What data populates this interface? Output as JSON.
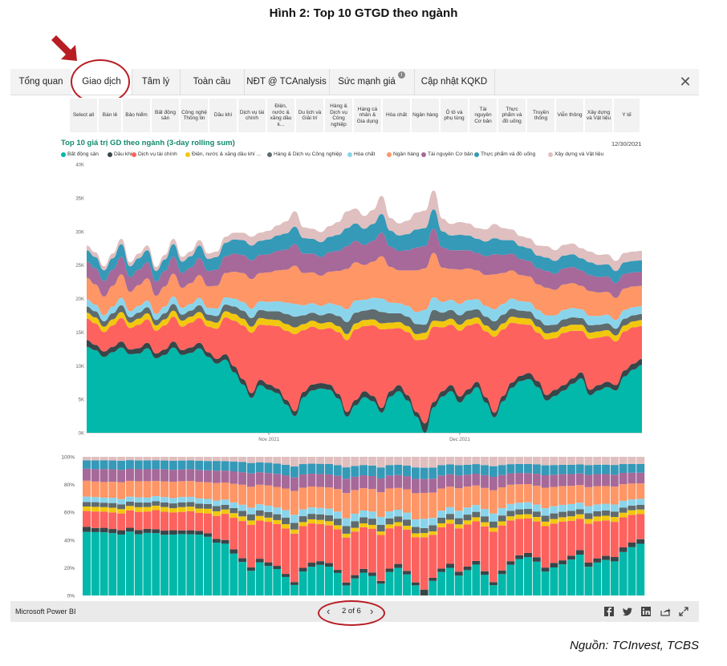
{
  "figure_title": "Hình 2: Top 10 GTGD theo ngành",
  "source": "Nguồn: TCInvest, TCBS",
  "tabs": [
    {
      "label": "Tổng quan"
    },
    {
      "label": "Giao dịch",
      "active": true
    },
    {
      "label": "Tâm lý"
    },
    {
      "label": "Toàn cầu"
    },
    {
      "label": "NĐT @ TCAnalysis"
    },
    {
      "label": "Sức mạnh giá",
      "info": true
    },
    {
      "label": "Cập nhật KQKD"
    }
  ],
  "close_symbol": "✕",
  "slicer": [
    "Select all",
    "Bán lẻ",
    "Bảo hiểm",
    "Bất động sản",
    "Công nghệ Thông tin",
    "Dầu khí",
    "Dịch vụ tài chính",
    "Điện, nước & xăng dầu k...",
    "Du lịch và Giải trí",
    "Hàng & Dịch vụ Công nghiệp",
    "Hàng cá nhân & Gia dụng",
    "Hóa chất",
    "Ngân hàng",
    "Ô tô và phụ tùng",
    "Tài nguyên Cơ bản",
    "Thực phẩm và đồ uống",
    "Truyền thông",
    "Viễn thông",
    "Xây dựng và Vật liệu",
    "Y tế"
  ],
  "chart_header": {
    "title": "Top 10 giá trị GD theo ngành (3-day rolling sum)",
    "date": "12/30/2021"
  },
  "footer": {
    "brand": "Microsoft Power BI",
    "page": "2 of 6",
    "prev": "‹",
    "next": "›"
  },
  "footer_icons": [
    "facebook-icon",
    "twitter-icon",
    "linkedin-icon",
    "share-icon",
    "expand-icon"
  ],
  "colors": {
    "accent_red": "#b81d24",
    "title_teal": "#118a6e"
  },
  "chart_data": [
    {
      "type": "area",
      "title": "Top 10 giá trị GD theo ngành (3-day rolling sum)",
      "x_ticks": [
        "Nov 2021",
        "Dec 2021"
      ],
      "y_ticks": [
        "0K",
        "5K",
        "10K",
        "15K",
        "20K",
        "25K",
        "30K",
        "35K",
        "40K"
      ],
      "ylim": [
        0,
        40000
      ],
      "legend_position": "top",
      "x": [
        "10/01",
        "10/04",
        "10/05",
        "10/06",
        "10/07",
        "10/08",
        "10/11",
        "10/12",
        "10/13",
        "10/14",
        "10/15",
        "10/18",
        "10/19",
        "10/20",
        "10/21",
        "10/22",
        "10/25",
        "10/26",
        "10/27",
        "10/28",
        "10/29",
        "11/01",
        "11/02",
        "11/03",
        "11/04",
        "11/05",
        "11/08",
        "11/09",
        "11/10",
        "11/11",
        "11/12",
        "11/15",
        "11/16",
        "11/17",
        "11/18",
        "11/19",
        "11/22",
        "11/23",
        "11/24",
        "11/25",
        "11/26",
        "11/29",
        "11/30",
        "12/01",
        "12/02",
        "12/03",
        "12/06",
        "12/07",
        "12/08",
        "12/09",
        "12/10",
        "12/13",
        "12/14",
        "12/15",
        "12/16",
        "12/17",
        "12/20",
        "12/21",
        "12/22",
        "12/23",
        "12/24",
        "12/27",
        "12/28",
        "12/29",
        "12/30"
      ],
      "series": [
        {
          "name": "Bất động sản",
          "color": "#01B8AA",
          "values": [
            12800,
            12300,
            11300,
            12000,
            12700,
            11700,
            11800,
            12600,
            11100,
            11600,
            12700,
            11600,
            11900,
            12600,
            11300,
            10300,
            10900,
            9000,
            7200,
            5200,
            7100,
            6400,
            5900,
            4200,
            2500,
            5300,
            6300,
            6600,
            6400,
            5100,
            2400,
            4100,
            5300,
            4700,
            3000,
            5400,
            6200,
            4800,
            2400,
            0,
            3800,
            5400,
            6200,
            4500,
            5700,
            6800,
            4500,
            2300,
            4700,
            6700,
            7700,
            8000,
            6800,
            4800,
            5500,
            6300,
            7300,
            8100,
            5600,
            6300,
            6800,
            6300,
            8400,
            9400,
            10100
          ]
        },
        {
          "name": "Dầu khí",
          "color": "#374649",
          "values": [
            1000,
            800,
            800,
            800,
            900,
            700,
            800,
            800,
            700,
            800,
            900,
            700,
            800,
            800,
            700,
            700,
            800,
            900,
            800,
            700,
            800,
            800,
            700,
            700,
            700,
            800,
            900,
            800,
            800,
            700,
            700,
            800,
            900,
            800,
            700,
            800,
            900,
            800,
            700,
            1400,
            800,
            800,
            900,
            900,
            800,
            800,
            800,
            700,
            800,
            800,
            800,
            900,
            900,
            800,
            900,
            800,
            800,
            900,
            800,
            800,
            800,
            800,
            900,
            900,
            900
          ]
        },
        {
          "name": "Dịch vụ tài chính",
          "color": "#FD625E",
          "values": [
            3200,
            3200,
            2900,
            3200,
            3500,
            3200,
            3500,
            3500,
            3400,
            3600,
            3700,
            3500,
            3700,
            3700,
            3800,
            4500,
            5500,
            6800,
            8000,
            9000,
            8200,
            8800,
            9300,
            10300,
            11500,
            9200,
            8600,
            8000,
            8400,
            9200,
            10700,
            10500,
            9700,
            10500,
            11700,
            9300,
            8500,
            9400,
            10700,
            12500,
            11200,
            9500,
            9000,
            9800,
            9500,
            8700,
            9800,
            11300,
            9900,
            8900,
            7700,
            7200,
            7200,
            8300,
            7700,
            7800,
            7100,
            6200,
            7600,
            7100,
            6800,
            6500,
            5800,
            5400,
            4900
          ]
        },
        {
          "name": "Điện, nước & xăng dầu khí ...",
          "color": "#F2C80F",
          "values": [
            900,
            900,
            800,
            900,
            900,
            800,
            900,
            900,
            800,
            900,
            900,
            900,
            900,
            900,
            900,
            900,
            900,
            1000,
            1000,
            900,
            1000,
            900,
            900,
            1000,
            1000,
            900,
            900,
            900,
            900,
            900,
            900,
            900,
            900,
            900,
            900,
            900,
            900,
            900,
            900,
            1000,
            900,
            900,
            900,
            900,
            900,
            900,
            900,
            900,
            900,
            900,
            900,
            900,
            900,
            900,
            900,
            900,
            900,
            900,
            900,
            900,
            900,
            900,
            900,
            900,
            900
          ]
        },
        {
          "name": "Hàng & Dịch vụ Công nghiệp",
          "color": "#5F6B6D",
          "values": [
            900,
            900,
            800,
            900,
            1000,
            800,
            900,
            900,
            800,
            900,
            1000,
            900,
            900,
            1000,
            900,
            1000,
            1000,
            1100,
            1200,
            1300,
            1200,
            1200,
            1300,
            1500,
            1600,
            1300,
            1200,
            1200,
            1300,
            1500,
            1800,
            1600,
            1400,
            1500,
            1700,
            1400,
            1300,
            1400,
            1500,
            1200,
            1600,
            1300,
            1300,
            1400,
            1300,
            1200,
            1300,
            1400,
            1300,
            1200,
            1100,
            1100,
            1100,
            1200,
            1100,
            1100,
            1100,
            1000,
            1100,
            1000,
            1000,
            1000,
            1000,
            900,
            900
          ]
        },
        {
          "name": "Hóa chất",
          "color": "#8AD4EB",
          "values": [
            1100,
            1000,
            900,
            1000,
            1100,
            900,
            1000,
            1000,
            900,
            1000,
            1100,
            1000,
            1000,
            1100,
            1000,
            1100,
            1100,
            1200,
            1300,
            1400,
            1300,
            1400,
            1500,
            1700,
            1900,
            1500,
            1400,
            1400,
            1500,
            1600,
            1900,
            1800,
            1600,
            1700,
            2000,
            1600,
            1500,
            1600,
            1800,
            2200,
            1900,
            1600,
            1500,
            1700,
            1600,
            1500,
            1600,
            1800,
            1600,
            1500,
            1400,
            1400,
            1400,
            1500,
            1400,
            1400,
            1400,
            1300,
            1400,
            1300,
            1300,
            1300,
            1300,
            1200,
            1200
          ]
        },
        {
          "name": "Ngân hàng",
          "color": "#FE9666",
          "values": [
            3200,
            3000,
            2800,
            3100,
            3500,
            2900,
            3100,
            3300,
            2700,
            3000,
            3400,
            3000,
            3100,
            3400,
            3200,
            3400,
            3600,
            4000,
            4300,
            4400,
            4200,
            4400,
            4600,
            4900,
            5700,
            4800,
            4600,
            4500,
            4700,
            5100,
            6000,
            5700,
            5200,
            5400,
            6300,
            5300,
            4900,
            5300,
            6200,
            6200,
            6600,
            5100,
            4600,
            5100,
            4700,
            4300,
            4600,
            5200,
            4600,
            4200,
            3900,
            3800,
            3800,
            4100,
            3800,
            3800,
            3700,
            3500,
            3700,
            3500,
            3400,
            3300,
            3200,
            3100,
            3000
          ]
        },
        {
          "name": "Tài nguyên Cơ bản",
          "color": "#A66999",
          "values": [
            2400,
            2400,
            2300,
            2400,
            2600,
            2200,
            2300,
            2400,
            2100,
            2300,
            2500,
            2200,
            2300,
            2500,
            2300,
            2400,
            2500,
            2700,
            2700,
            2800,
            2700,
            2700,
            2900,
            3000,
            3200,
            2900,
            2800,
            2800,
            2900,
            3000,
            3400,
            3200,
            3000,
            3100,
            3500,
            3000,
            2900,
            3000,
            3400,
            3300,
            3600,
            3000,
            2800,
            2900,
            2700,
            2600,
            2800,
            3000,
            2700,
            2500,
            2400,
            2300,
            2400,
            2500,
            2400,
            2400,
            2400,
            2300,
            2400,
            2300,
            2300,
            2200,
            2200,
            2100,
            2100
          ]
        },
        {
          "name": "Thực phẩm và đồ uống",
          "color": "#3599B8",
          "values": [
            1700,
            1700,
            1600,
            1700,
            1900,
            1600,
            1700,
            1800,
            1600,
            1700,
            1900,
            1700,
            1700,
            1900,
            1800,
            1900,
            2000,
            2100,
            2200,
            2200,
            2100,
            2200,
            2300,
            2400,
            2600,
            2300,
            2200,
            2200,
            2300,
            2400,
            2700,
            2600,
            2400,
            2500,
            2800,
            2400,
            2300,
            2400,
            2700,
            2700,
            2900,
            2400,
            2200,
            2300,
            2200,
            2100,
            2200,
            2400,
            2200,
            2000,
            1900,
            1900,
            1900,
            2000,
            1900,
            1900,
            1900,
            1800,
            1900,
            1800,
            1800,
            1800,
            1700,
            1700,
            1700
          ]
        },
        {
          "name": "Xây dựng và Vật liệu",
          "color": "#DFBFBF",
          "values": [
            700,
            700,
            600,
            700,
            800,
            600,
            700,
            700,
            600,
            700,
            800,
            700,
            700,
            800,
            800,
            800,
            900,
            1000,
            1100,
            1300,
            1200,
            1300,
            1500,
            1800,
            2300,
            1600,
            1500,
            1500,
            1600,
            1900,
            2500,
            2200,
            1900,
            2100,
            2700,
            1900,
            1800,
            2000,
            2500,
            2600,
            2800,
            1900,
            1700,
            1900,
            1800,
            1600,
            1800,
            2100,
            1800,
            1600,
            1500,
            1500,
            1500,
            1700,
            1600,
            1600,
            1600,
            1500,
            1600,
            1500,
            1500,
            1500,
            1400,
            1400,
            1400
          ]
        }
      ]
    },
    {
      "type": "bar",
      "stacked_percent": true,
      "y_ticks": [
        "0%",
        "20%",
        "40%",
        "60%",
        "80%",
        "100%"
      ],
      "ylim": [
        0,
        100
      ],
      "note": "100% stacked columns of the same 10 series over the same dates"
    }
  ]
}
